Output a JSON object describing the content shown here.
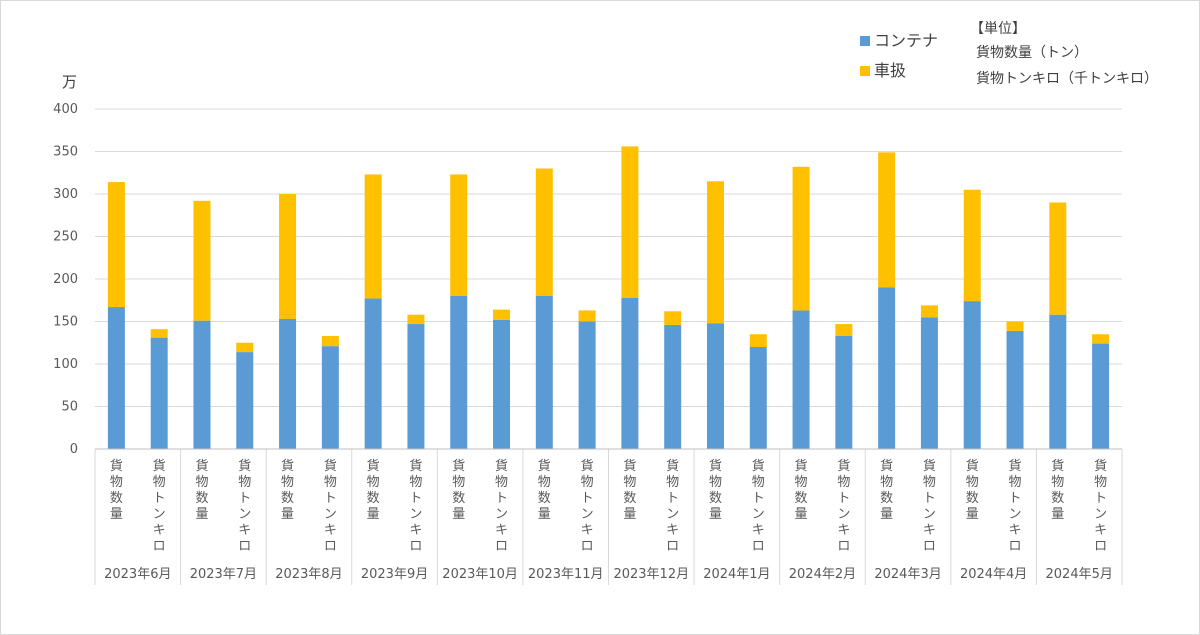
{
  "chart_data": {
    "type": "bar",
    "stacked": true,
    "y_unit": "万",
    "ylim": [
      0,
      400
    ],
    "yticks": [
      0,
      50,
      100,
      150,
      200,
      250,
      300,
      350,
      400
    ],
    "grid": true,
    "legend_position": "top-right",
    "sub_categories": [
      "貨物数量",
      "貨物トンキロ"
    ],
    "months": [
      "2023年6月",
      "2023年7月",
      "2023年8月",
      "2023年9月",
      "2023年10月",
      "2023年11月",
      "2023年12月",
      "2024年1月",
      "2024年2月",
      "2024年3月",
      "2024年4月",
      "2024年5月"
    ],
    "series": [
      {
        "name": "コンテナ",
        "color": "#5b9bd5",
        "values": [
          167,
          131,
          151,
          114,
          153,
          121,
          177,
          147,
          180,
          152,
          180,
          150,
          178,
          146,
          148,
          120,
          163,
          133,
          190,
          155,
          174,
          139,
          158,
          124
        ]
      },
      {
        "name": "車扱",
        "color": "#ffc000",
        "values": [
          147,
          10,
          141,
          11,
          147,
          12,
          146,
          11,
          143,
          12,
          150,
          13,
          178,
          16,
          167,
          15,
          169,
          14,
          159,
          14,
          131,
          11,
          132,
          11
        ]
      }
    ],
    "unit_note": {
      "title": "【単位】",
      "lines": [
        "貨物数量（トン）",
        "貨物トンキロ（千トンキロ）"
      ]
    }
  }
}
